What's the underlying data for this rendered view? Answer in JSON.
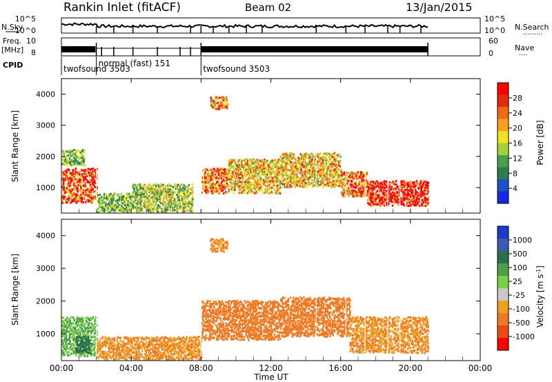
{
  "header": {
    "station": "Rankin Inlet (fitACF)",
    "beam": "Beam 02",
    "date": "13/Jan/2015"
  },
  "top_panels": {
    "nsky": {
      "label": "N.Sky",
      "right_label": "N.Search",
      "dots": ".........",
      "ticks": [
        "10^5",
        "10^0"
      ]
    },
    "freq": {
      "label_line1": "Freq.",
      "label_line2": "[MHz]",
      "right_label": "Nave",
      "dots": "....",
      "left_ticks": [
        "10",
        "8"
      ],
      "right_ticks": [
        "60",
        "0"
      ]
    },
    "cpid": {
      "label": "CPID",
      "segments": [
        {
          "name": "twofsound 3503",
          "start_hour": 0.0
        },
        {
          "name": "normal (fast) 151",
          "start_hour": 2.0
        },
        {
          "name": "twofsound 3503",
          "start_hour": 8.0
        }
      ]
    }
  },
  "colors": {
    "power_scale": [
      "#1428e6",
      "#2050c8",
      "#2e7d4f",
      "#4aa04a",
      "#a6d03c",
      "#f0e020",
      "#f5a020",
      "#f06a14",
      "#e82a10",
      "#ff0000"
    ],
    "velocity_scale": [
      "#1a3cc8",
      "#3a5ab4",
      "#2c6e4c",
      "#4c9e4c",
      "#7ad040",
      "#c8c8c8",
      "#f0a020",
      "#f07820",
      "#ea4a14",
      "#ff0000"
    ]
  },
  "chart_data": [
    {
      "type": "heatmap",
      "name": "power",
      "xlabel": "",
      "ylabel": "Slant Range [km]",
      "xlim": [
        0,
        24
      ],
      "ylim": [
        180,
        4500
      ],
      "yticks": [
        "1000",
        "2000",
        "3000",
        "4000"
      ],
      "colorbar": {
        "label": "Power [dB]",
        "ticks": [
          "4",
          "8",
          "12",
          "16",
          "20",
          "24",
          "28"
        ],
        "range": [
          0,
          30
        ]
      },
      "regions": [
        {
          "x": [
            0.0,
            2.0
          ],
          "y": [
            500,
            1600
          ],
          "v": 26
        },
        {
          "x": [
            0.0,
            1.3
          ],
          "y": [
            1700,
            2200
          ],
          "v": 12
        },
        {
          "x": [
            2.0,
            4.0
          ],
          "y": [
            200,
            800
          ],
          "v": 12
        },
        {
          "x": [
            4.0,
            7.5
          ],
          "y": [
            200,
            1100
          ],
          "v": 14
        },
        {
          "x": [
            8.0,
            9.5
          ],
          "y": [
            800,
            1600
          ],
          "v": 22
        },
        {
          "x": [
            9.5,
            12.5
          ],
          "y": [
            800,
            1900
          ],
          "v": 18
        },
        {
          "x": [
            12.5,
            16.0
          ],
          "y": [
            1000,
            2100
          ],
          "v": 18
        },
        {
          "x": [
            16.0,
            17.5
          ],
          "y": [
            700,
            1500
          ],
          "v": 22
        },
        {
          "x": [
            17.5,
            21.0
          ],
          "y": [
            400,
            1200
          ],
          "v": 28
        },
        {
          "x": [
            8.5,
            9.5
          ],
          "y": [
            3500,
            3900
          ],
          "v": 20
        }
      ]
    },
    {
      "type": "heatmap",
      "name": "velocity",
      "xlabel": "Time UT",
      "ylabel": "Slant Range [km]",
      "xlim": [
        0,
        24
      ],
      "ylim": [
        180,
        4500
      ],
      "xticks": [
        "00:00",
        "04:00",
        "08:00",
        "12:00",
        "16:00",
        "20:00",
        "00:00"
      ],
      "yticks": [
        "1000",
        "2000",
        "3000",
        "4000"
      ],
      "colorbar": {
        "label": "Velocity [m s^-1]",
        "ticks": [
          "1000",
          "500",
          "100",
          "25",
          "-25",
          "-100",
          "-500",
          "-1000"
        ]
      },
      "regions": [
        {
          "x": [
            0.0,
            2.0
          ],
          "y": [
            300,
            1500
          ],
          "v": 100
        },
        {
          "x": [
            0.8,
            1.6
          ],
          "y": [
            400,
            900
          ],
          "v": 800
        },
        {
          "x": [
            2.0,
            8.0
          ],
          "y": [
            200,
            900
          ],
          "v": -100
        },
        {
          "x": [
            8.0,
            12.5
          ],
          "y": [
            800,
            2000
          ],
          "v": -200
        },
        {
          "x": [
            12.5,
            16.5
          ],
          "y": [
            900,
            2100
          ],
          "v": -200
        },
        {
          "x": [
            16.5,
            21.0
          ],
          "y": [
            400,
            1500
          ],
          "v": -100
        },
        {
          "x": [
            8.5,
            9.5
          ],
          "y": [
            3500,
            3900
          ],
          "v": -100
        }
      ]
    }
  ]
}
